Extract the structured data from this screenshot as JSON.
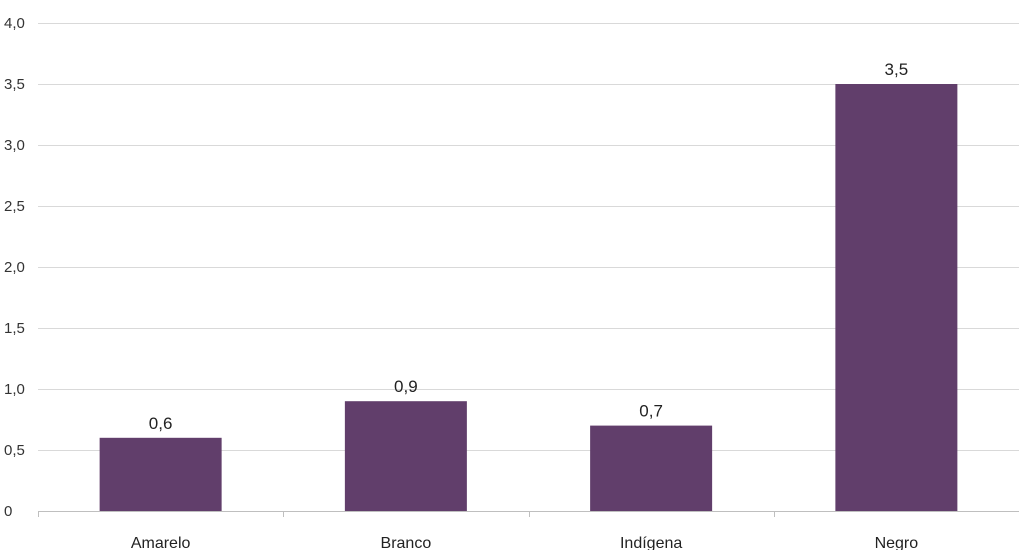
{
  "chart_data": {
    "type": "bar",
    "categories": [
      "Amarelo",
      "Branco",
      "Indígena",
      "Negro"
    ],
    "values": [
      0.6,
      0.9,
      0.7,
      3.5
    ],
    "data_labels": [
      "0,6",
      "0,9",
      "0,7",
      "3,5"
    ],
    "ylim": [
      0,
      4.0
    ],
    "y_ticks": [
      0,
      0.5,
      1.0,
      1.5,
      2.0,
      2.5,
      3.0,
      3.5,
      4.0
    ],
    "y_tick_labels": [
      "0",
      "0,5",
      "1,0",
      "1,5",
      "2,0",
      "2,5",
      "3,0",
      "3,5",
      "4,0"
    ],
    "grid": true,
    "legend": "none",
    "bar_color": "#613e6b"
  }
}
